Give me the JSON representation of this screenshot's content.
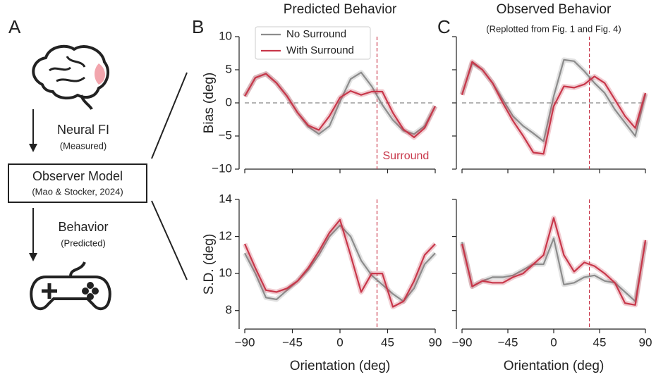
{
  "panel_labels": [
    "A",
    "B",
    "C"
  ],
  "diagram": {
    "step1": "Neural FI",
    "step1_note": "(Measured)",
    "model": "Observer Model",
    "model_note": "(Mao & Stocker, 2024)",
    "step2": "Behavior",
    "step2_note": "(Predicted)"
  },
  "chart_data": [
    {
      "type": "line",
      "title": "Predicted Behavior",
      "ylabel": "Bias (deg)",
      "x": [
        -90,
        -80,
        -70,
        -60,
        -50,
        -40,
        -30,
        -20,
        -10,
        0,
        10,
        20,
        30,
        40,
        50,
        60,
        70,
        80,
        90
      ],
      "series": [
        {
          "name": "No Surround",
          "color": "#8c8c8c",
          "values": [
            1.0,
            3.8,
            4.4,
            3.0,
            1.0,
            -1.5,
            -3.6,
            -4.7,
            -3.5,
            0.2,
            3.6,
            4.6,
            2.5,
            -0.3,
            -2.6,
            -4.2,
            -4.7,
            -3.5,
            -0.5
          ]
        },
        {
          "name": "With Surround",
          "color": "#c8374a",
          "values": [
            1.0,
            3.8,
            4.4,
            3.0,
            1.0,
            -1.5,
            -3.4,
            -4.1,
            -2.0,
            0.8,
            1.8,
            1.2,
            1.7,
            1.7,
            -1.5,
            -4.0,
            -5.2,
            -3.8,
            -0.5
          ]
        }
      ],
      "xlim": [
        -90,
        90
      ],
      "xticks": [
        -90,
        -45,
        0,
        45,
        90
      ],
      "xtick_labels": false,
      "ylim": [
        -10,
        10
      ],
      "yticks": [
        {
          "value": -10,
          "label": "−10"
        },
        {
          "value": -5,
          "label": "−5"
        },
        0,
        5,
        10
      ],
      "ytick_labels": true,
      "hline": 0,
      "vline": 35,
      "vline_label": "Surround",
      "legend": "upper left"
    },
    {
      "type": "line",
      "title": "Observed Behavior",
      "subtitle": "(Replotted from Fig. 1 and Fig. 4)",
      "x": [
        -90,
        -80,
        -70,
        -60,
        -50,
        -40,
        -30,
        -20,
        -10,
        0,
        10,
        20,
        30,
        40,
        50,
        60,
        70,
        80,
        90
      ],
      "series": [
        {
          "color": "#8c8c8c",
          "values": [
            1.3,
            6.0,
            5.0,
            3.0,
            0.5,
            -2.0,
            -3.5,
            -4.6,
            -5.8,
            1.0,
            6.5,
            6.3,
            4.8,
            3.0,
            1.5,
            -1.0,
            -3.0,
            -5.0,
            1.3
          ]
        },
        {
          "color": "#c8374a",
          "values": [
            1.2,
            6.2,
            5.0,
            3.0,
            0.0,
            -2.7,
            -5.0,
            -7.5,
            -7.7,
            -0.5,
            2.5,
            2.3,
            2.8,
            4.0,
            3.0,
            0.5,
            -2.0,
            -3.8,
            1.5
          ]
        }
      ],
      "xlim": [
        -90,
        90
      ],
      "xticks": [
        -90,
        -45,
        0,
        45,
        90
      ],
      "xtick_labels": false,
      "ylim": [
        -10,
        10
      ],
      "yticks": [
        -10,
        -5,
        0,
        5,
        10
      ],
      "ytick_labels": false,
      "hline": 0,
      "vline": 35
    },
    {
      "type": "line",
      "ylabel": "S.D. (deg)",
      "xlabel": "Orientation (deg)",
      "x": [
        -90,
        -80,
        -70,
        -60,
        -50,
        -40,
        -30,
        -20,
        -10,
        0,
        10,
        20,
        30,
        40,
        50,
        60,
        70,
        80,
        90
      ],
      "series": [
        {
          "color": "#8c8c8c",
          "values": [
            11.1,
            10.0,
            8.7,
            8.6,
            9.1,
            9.6,
            10.2,
            11.0,
            12.0,
            12.6,
            12.0,
            10.7,
            9.9,
            9.4,
            8.9,
            8.5,
            9.2,
            10.5,
            11.1
          ]
        },
        {
          "color": "#c8374a",
          "values": [
            11.6,
            10.3,
            9.1,
            9.0,
            9.2,
            9.6,
            10.3,
            11.2,
            12.2,
            12.9,
            11.0,
            9.0,
            10.0,
            10.0,
            8.2,
            8.5,
            9.6,
            11.0,
            11.6
          ]
        }
      ],
      "xlim": [
        -90,
        90
      ],
      "xticks": [
        {
          "value": -90,
          "label": "−90"
        },
        {
          "value": -45,
          "label": "−45"
        },
        0,
        45,
        90
      ],
      "xtick_labels": true,
      "ylim": [
        7,
        14
      ],
      "yticks": [
        8,
        10,
        12,
        14
      ],
      "ytick_labels": true,
      "vline": 35
    },
    {
      "type": "line",
      "xlabel": "Orientation (deg)",
      "x": [
        -90,
        -80,
        -70,
        -60,
        -50,
        -40,
        -30,
        -20,
        -10,
        0,
        10,
        20,
        30,
        40,
        50,
        60,
        70,
        80,
        90
      ],
      "series": [
        {
          "color": "#8c8c8c",
          "values": [
            11.7,
            9.3,
            9.6,
            9.8,
            9.8,
            9.9,
            10.2,
            10.5,
            10.5,
            11.9,
            9.4,
            9.5,
            9.8,
            9.9,
            9.6,
            9.5,
            9.0,
            8.5,
            11.7
          ]
        },
        {
          "color": "#c8374a",
          "values": [
            11.6,
            9.3,
            9.6,
            9.5,
            9.5,
            9.8,
            10.0,
            10.5,
            11.0,
            13.0,
            11.0,
            10.1,
            10.6,
            10.4,
            10.0,
            9.5,
            8.4,
            8.3,
            11.8
          ]
        }
      ],
      "xlim": [
        -90,
        90
      ],
      "xticks": [
        {
          "value": -90,
          "label": "−90"
        },
        {
          "value": -45,
          "label": "−45"
        },
        0,
        45,
        90
      ],
      "xtick_labels": true,
      "ylim": [
        7,
        14
      ],
      "yticks": [
        8,
        10,
        12,
        14
      ],
      "ytick_labels": false,
      "vline": 35
    }
  ]
}
